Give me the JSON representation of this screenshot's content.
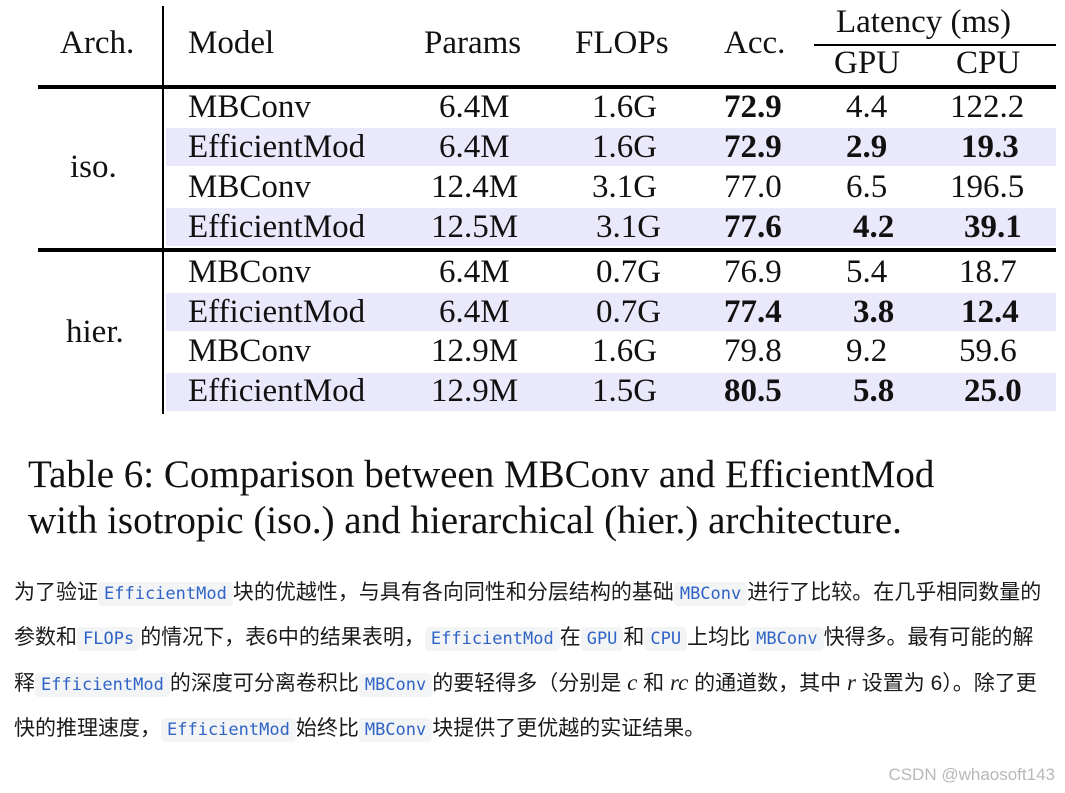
{
  "table": {
    "headers": {
      "arch": "Arch.",
      "model": "Model",
      "params": "Params",
      "flops": "FLOPs",
      "acc": "Acc.",
      "latency": "Latency (ms)",
      "gpu": "GPU",
      "cpu": "CPU"
    },
    "groups": [
      {
        "arch": "iso.",
        "rows": [
          {
            "model": "MBConv",
            "params": "6.4M",
            "flops": "1.6G",
            "acc": "72.9",
            "gpu": "4.4",
            "cpu": "122.2"
          },
          {
            "model": "EfficientMod",
            "params": "6.4M",
            "flops": "1.6G",
            "acc": "72.9",
            "gpu": "2.9",
            "cpu": "19.3"
          },
          {
            "model": "MBConv",
            "params": "12.4M",
            "flops": "3.1G",
            "acc": "77.0",
            "gpu": "6.5",
            "cpu": "196.5"
          },
          {
            "model": "EfficientMod",
            "params": "12.5M",
            "flops": "3.1G",
            "acc": "77.6",
            "gpu": "4.2",
            "cpu": "39.1"
          }
        ]
      },
      {
        "arch": "hier.",
        "rows": [
          {
            "model": "MBConv",
            "params": "6.4M",
            "flops": "0.7G",
            "acc": "76.9",
            "gpu": "5.4",
            "cpu": "18.7"
          },
          {
            "model": "EfficientMod",
            "params": "6.4M",
            "flops": "0.7G",
            "acc": "77.4",
            "gpu": "3.8",
            "cpu": "12.4"
          },
          {
            "model": "MBConv",
            "params": "12.9M",
            "flops": "1.6G",
            "acc": "79.8",
            "gpu": "9.2",
            "cpu": "59.6"
          },
          {
            "model": "EfficientMod",
            "params": "12.9M",
            "flops": "1.5G",
            "acc": "80.5",
            "gpu": "5.8",
            "cpu": "25.0"
          }
        ]
      }
    ]
  },
  "caption": {
    "line1": "Table 6: Comparison between MBConv and EfficientMod",
    "line2": "with isotropic (iso.) and hierarchical (hier.) architecture."
  },
  "paragraph": {
    "p1": "为了验证",
    "c1": "EfficientMod",
    "p2": "块的优越性，与具有各向同性和分层结构的基础",
    "c2": "MBConv",
    "p3": "进行了比较。在几乎相同数量的参数和",
    "c3": "FLOPs",
    "p4": "的情况下，表6中的结果表明，",
    "c4": "EfficientMod",
    "p5": "在",
    "c5": "GPU",
    "p6": "和",
    "c6": "CPU",
    "p7": "上均比",
    "c7": "MBConv",
    "p8": "快得多。最有可能的解释",
    "c8": "EfficientMod",
    "p9": "的深度可分离卷积比",
    "c9": "MBConv",
    "p10": "的要轻得多（分别是",
    "m1": "c",
    "p11": "和",
    "m2": "rc",
    "p12": "的通道数，其中",
    "m3": "r",
    "p13": "设置为 6）。除了更快的推理速度，",
    "c10": "EfficientMod",
    "p14": "始终比",
    "c11": "MBConv",
    "p15": "块提供了更优越的实证结果。"
  },
  "watermark": "CSDN @whaosoft143"
}
